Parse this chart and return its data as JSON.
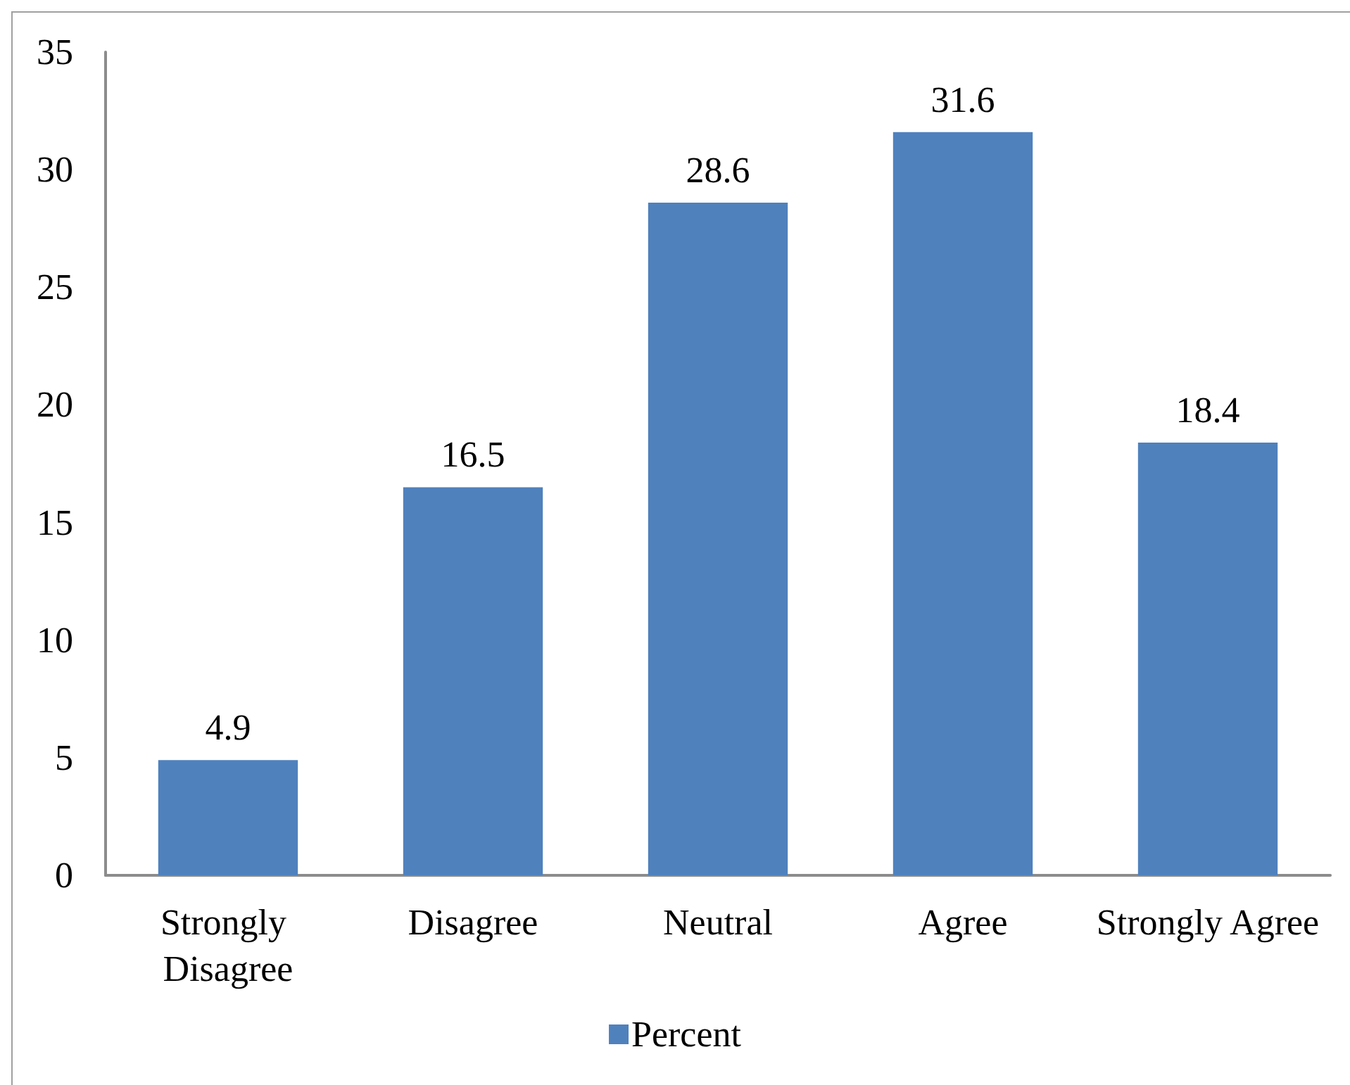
{
  "chart_data": {
    "type": "bar",
    "categories": [
      "Strongly Disagree",
      "Disagree",
      "Neutral",
      "Agree",
      "Strongly Agree"
    ],
    "series": [
      {
        "name": "Percent",
        "color": "#4f81bd",
        "values": [
          4.9,
          16.5,
          28.6,
          31.6,
          18.4
        ]
      }
    ],
    "ylim": [
      0,
      35
    ],
    "yticks": [
      0,
      5,
      10,
      15,
      20,
      25,
      30,
      35
    ],
    "data_labels": true,
    "legend": "bottom",
    "grid": false
  }
}
